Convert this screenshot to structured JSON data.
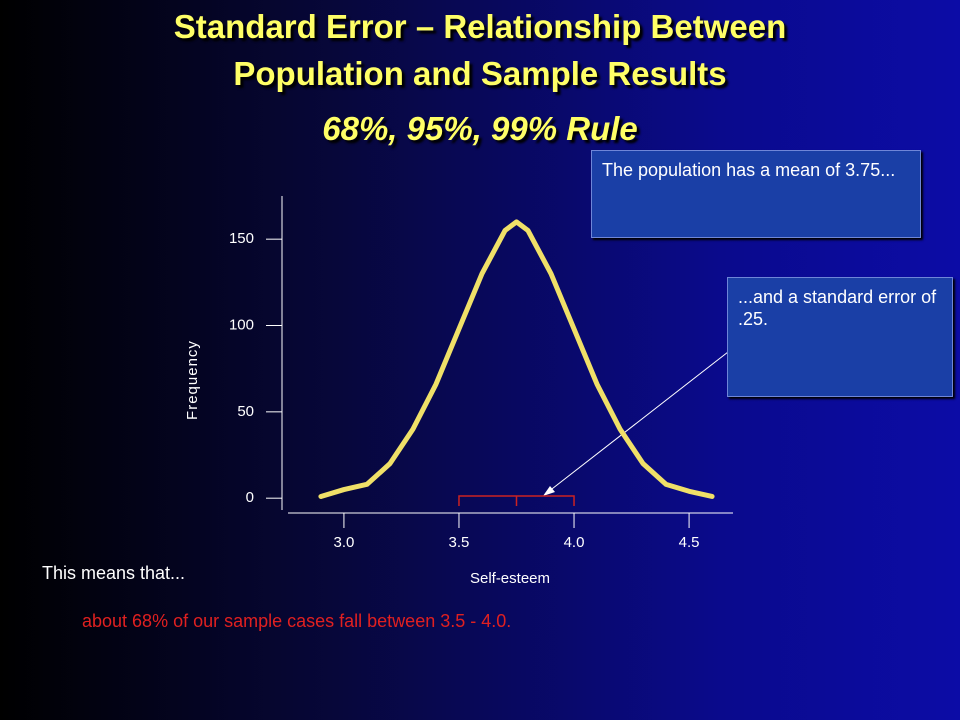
{
  "title_lines": [
    "Standard Error – Relationship Between",
    "Population and Sample Results",
    "68%, 95%, 99% Rule"
  ],
  "note_mean": "The population has a mean of 3.75...",
  "note_se": "...and a standard error of .25.",
  "text_intro": "This means that...",
  "text_result": "about 68% of our sample cases fall between 3.5 - 4.0.",
  "chart_data": {
    "type": "line",
    "x_label": "Self-esteem",
    "y_label": "Frequency",
    "x": [
      2.9,
      3.0,
      3.1,
      3.2,
      3.3,
      3.4,
      3.5,
      3.6,
      3.7,
      3.75,
      3.8,
      3.9,
      4.0,
      4.1,
      4.2,
      4.3,
      4.4,
      4.5,
      4.6
    ],
    "series": [
      {
        "name": "Frequency",
        "color": "#f0e068",
        "values": [
          1,
          5,
          8,
          20,
          40,
          66,
          98,
          130,
          155,
          160,
          155,
          130,
          98,
          66,
          40,
          20,
          8,
          4,
          1
        ]
      }
    ],
    "bracket_x": [
      3.5,
      3.75,
      4.0
    ],
    "bracket_color": "#cc2222",
    "xlim": [
      2.77,
      4.73
    ],
    "ylim": [
      -8,
      175
    ],
    "xticks": [
      {
        "value": 3.0,
        "label": "3.0"
      },
      {
        "value": 3.5,
        "label": "3.5"
      },
      {
        "value": 4.0,
        "label": "4.0"
      },
      {
        "value": 4.5,
        "label": "4.5"
      }
    ],
    "yticks": [
      0,
      50,
      100,
      150
    ]
  }
}
